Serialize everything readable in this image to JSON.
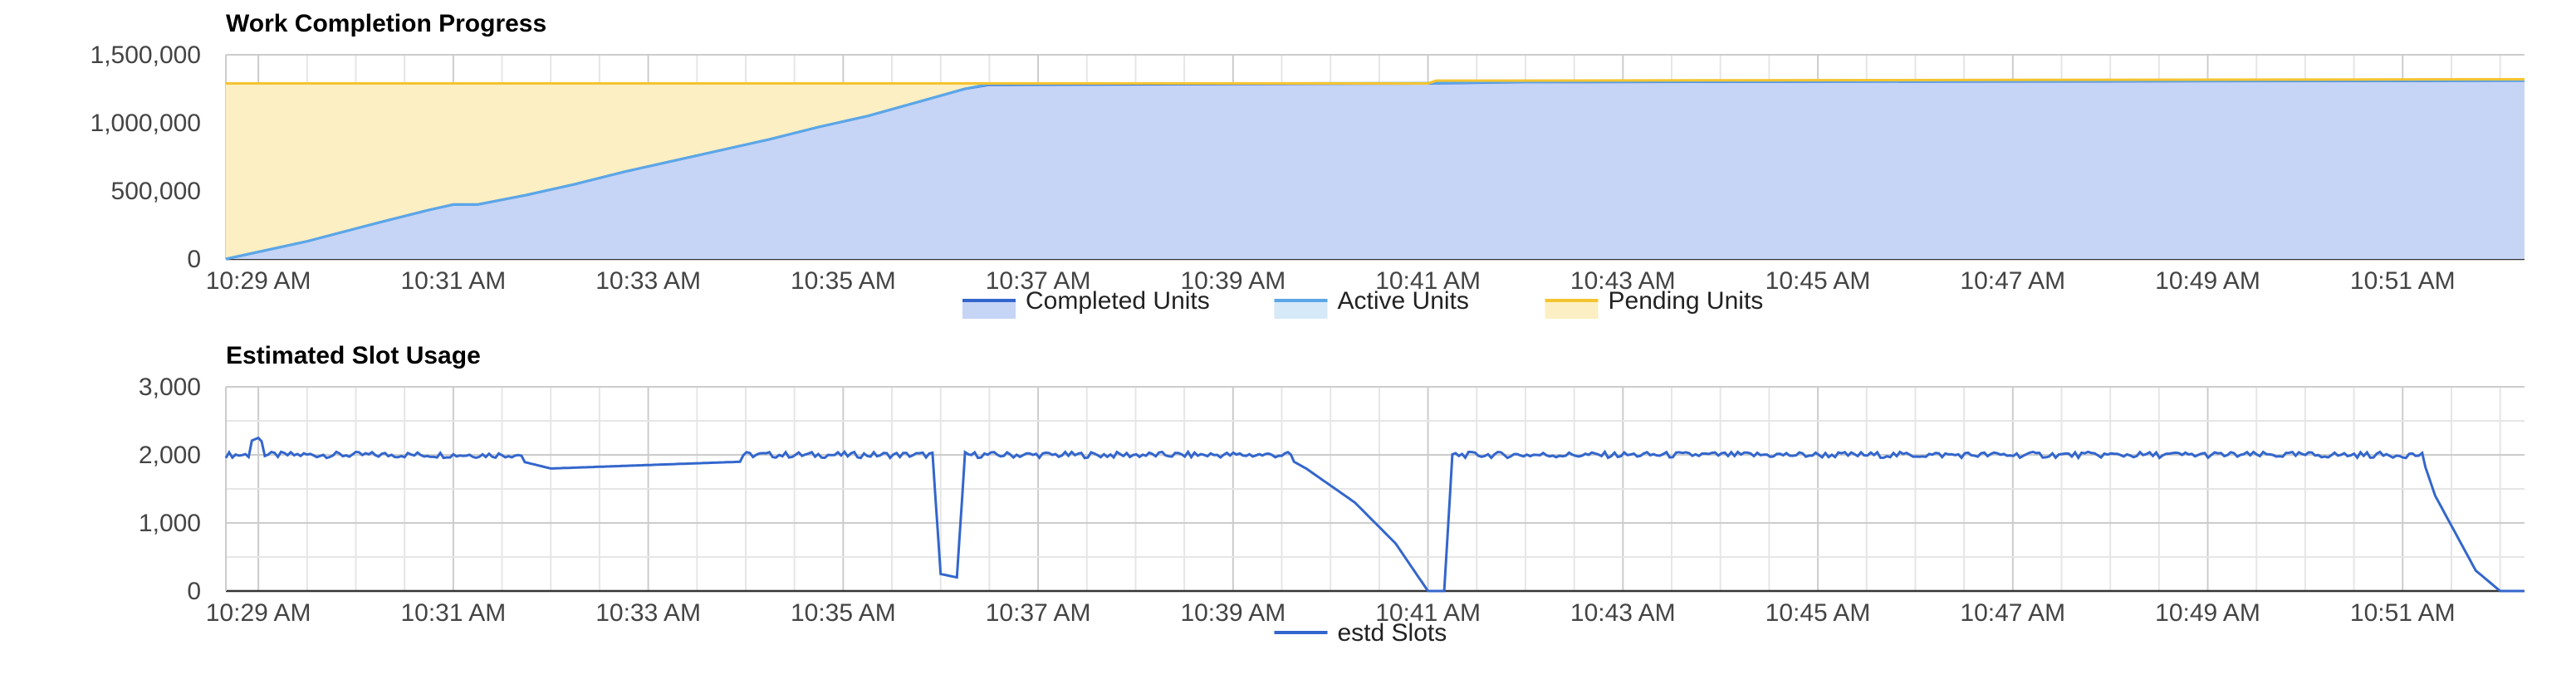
{
  "chart_data": [
    {
      "type": "area",
      "title": "Work Completion Progress",
      "ylim": [
        0,
        1500000
      ],
      "y_ticks": [
        "0",
        "500,000",
        "1,000,000",
        "1,500,000"
      ],
      "x_ticks": [
        "10:29 AM",
        "10:31 AM",
        "10:33 AM",
        "10:35 AM",
        "10:37 AM",
        "10:39 AM",
        "10:41 AM",
        "10:43 AM",
        "10:45 AM",
        "10:47 AM",
        "10:49 AM",
        "10:51 AM"
      ],
      "x_range_minutes": [
        "10:28:40 AM",
        "10:52:15 AM"
      ],
      "grid": true,
      "legend": "bottom",
      "series": [
        {
          "name": "Completed Units",
          "color": "#3366cc",
          "fill": "#c6d4f5",
          "points": [
            [
              "10:28:40",
              0
            ],
            [
              "10:29:30",
              130000
            ],
            [
              "10:30:15",
              270000
            ],
            [
              "10:30:45",
              360000
            ],
            [
              "10:31:00",
              400000
            ],
            [
              "10:31:15",
              400000
            ],
            [
              "10:31:45",
              470000
            ],
            [
              "10:32:15",
              550000
            ],
            [
              "10:32:45",
              640000
            ],
            [
              "10:33:15",
              720000
            ],
            [
              "10:33:45",
              800000
            ],
            [
              "10:34:15",
              880000
            ],
            [
              "10:34:45",
              970000
            ],
            [
              "10:35:15",
              1050000
            ],
            [
              "10:35:45",
              1150000
            ],
            [
              "10:36:15",
              1250000
            ],
            [
              "10:36:30",
              1280000
            ],
            [
              "10:41:00",
              1290000
            ],
            [
              "10:42:00",
              1300000
            ],
            [
              "10:52:15",
              1310000
            ]
          ]
        },
        {
          "name": "Active Units",
          "color": "#5aa7e8",
          "fill": "#d6e9f8",
          "points": [
            [
              "10:28:40",
              0
            ],
            [
              "10:29:30",
              130000
            ],
            [
              "10:30:15",
              270000
            ],
            [
              "10:30:45",
              360000
            ],
            [
              "10:31:00",
              400000
            ],
            [
              "10:31:15",
              400000
            ],
            [
              "10:31:45",
              470000
            ],
            [
              "10:32:15",
              550000
            ],
            [
              "10:32:45",
              640000
            ],
            [
              "10:33:15",
              720000
            ],
            [
              "10:33:45",
              800000
            ],
            [
              "10:34:15",
              880000
            ],
            [
              "10:34:45",
              970000
            ],
            [
              "10:35:15",
              1050000
            ],
            [
              "10:35:45",
              1150000
            ],
            [
              "10:36:15",
              1250000
            ],
            [
              "10:36:30",
              1285000
            ],
            [
              "10:41:00",
              1292000
            ],
            [
              "10:42:00",
              1302000
            ],
            [
              "10:52:15",
              1312000
            ]
          ]
        },
        {
          "name": "Pending Units",
          "color": "#f4c430",
          "fill": "#fcefc3",
          "points": [
            [
              "10:28:40",
              1290000
            ],
            [
              "10:41:00",
              1290000
            ],
            [
              "10:41:05",
              1310000
            ],
            [
              "10:52:15",
              1320000
            ]
          ]
        }
      ]
    },
    {
      "type": "line",
      "title": "Estimated Slot Usage",
      "ylim": [
        0,
        3000
      ],
      "y_ticks": [
        "0",
        "1,000",
        "2,000",
        "3,000"
      ],
      "x_ticks": [
        "10:29 AM",
        "10:31 AM",
        "10:33 AM",
        "10:35 AM",
        "10:37 AM",
        "10:39 AM",
        "10:41 AM",
        "10:43 AM",
        "10:45 AM",
        "10:47 AM",
        "10:49 AM",
        "10:51 AM"
      ],
      "x_range_minutes": [
        "10:28:40 AM",
        "10:52:15 AM"
      ],
      "grid": true,
      "legend": "bottom",
      "series": [
        {
          "name": "estd Slots",
          "color": "#3366cc",
          "points": [
            [
              "10:28:40",
              2050
            ],
            [
              "10:29:00",
              2250
            ],
            [
              "10:29:10",
              2000
            ],
            [
              "10:31:00",
              2150
            ],
            [
              "10:32:00",
              1800
            ],
            [
              "10:35:55",
              2000
            ],
            [
              "10:36:00",
              250
            ],
            [
              "10:36:10",
              200
            ],
            [
              "10:36:15",
              2000
            ],
            [
              "10:39:30",
              2000
            ],
            [
              "10:39:45",
              1800
            ],
            [
              "10:40:15",
              1300
            ],
            [
              "10:40:40",
              700
            ],
            [
              "10:41:00",
              0
            ],
            [
              "10:41:10",
              0
            ],
            [
              "10:41:15",
              2000
            ],
            [
              "10:51:00",
              2000
            ],
            [
              "10:51:10",
              2100
            ],
            [
              "10:51:20",
              1400
            ],
            [
              "10:51:45",
              300
            ],
            [
              "10:52:00",
              0
            ],
            [
              "10:52:15",
              0
            ]
          ]
        }
      ]
    }
  ]
}
